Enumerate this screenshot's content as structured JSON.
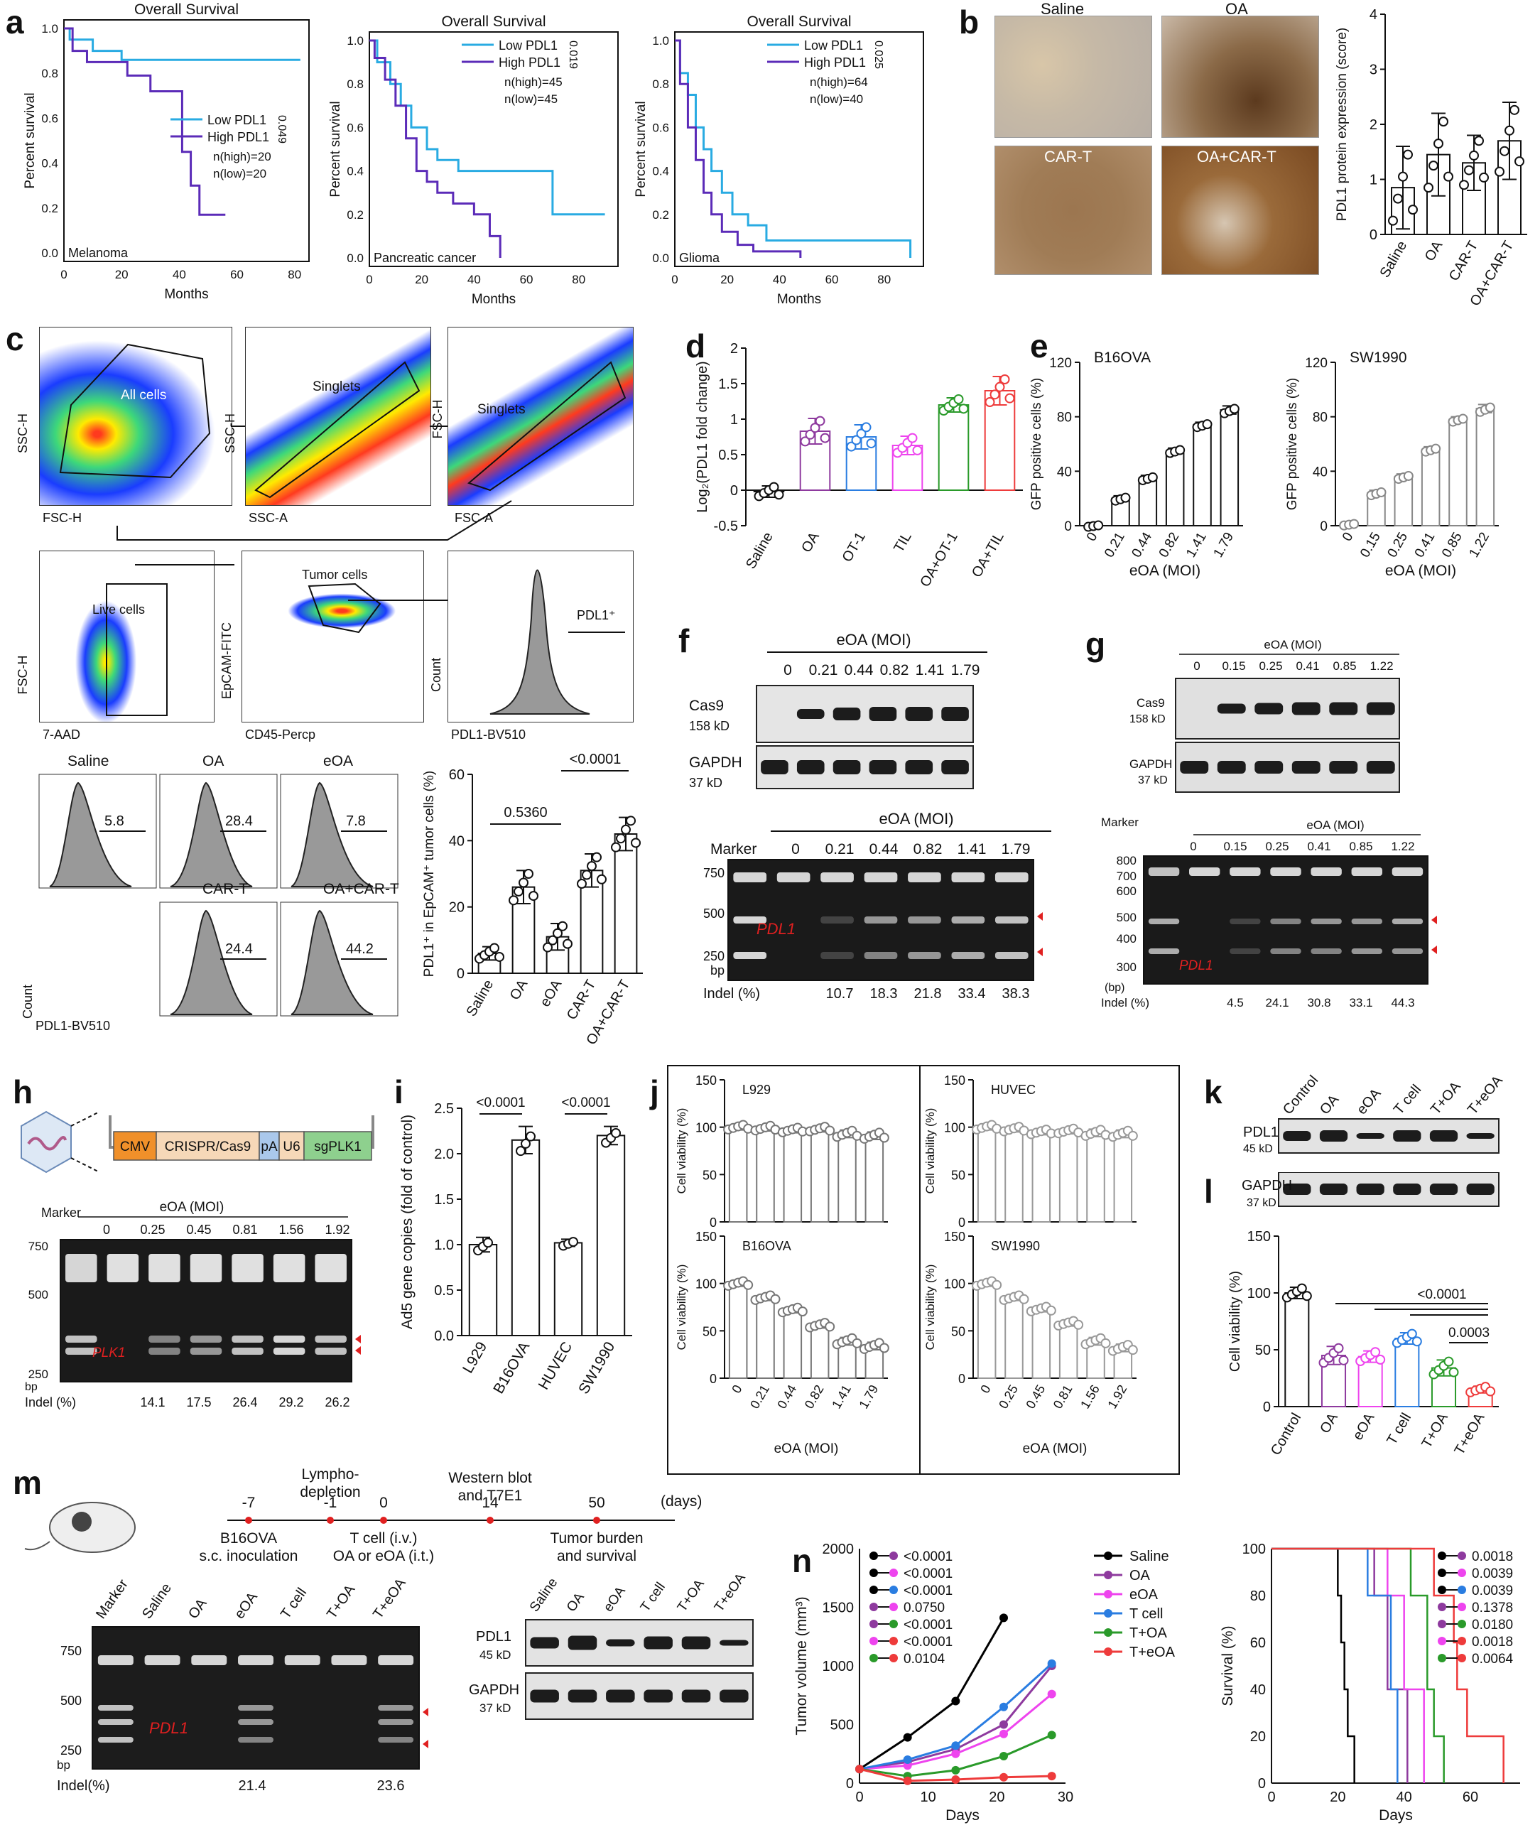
{
  "panels": {
    "a": "a",
    "b": "b",
    "c": "c",
    "d": "d",
    "e": "e",
    "f": "f",
    "g": "g",
    "h": "h",
    "i": "i",
    "j": "j",
    "k": "k",
    "l": "l",
    "m": "m",
    "n": "n"
  },
  "km_title": "Overall Survival",
  "km_ylabel": "Percent survival",
  "km_xlabel": "Months",
  "km_low": "Low PDL1",
  "km_high": "High PDL1",
  "km_plots": [
    {
      "cancer": "Melanoma",
      "p": "0.049",
      "n_high": "n(high)=20",
      "n_low": "n(low)=20"
    },
    {
      "cancer": "Pancreatic cancer",
      "p": "0.019",
      "n_high": "n(high)=45",
      "n_low": "n(low)=45"
    },
    {
      "cancer": "Glioma",
      "p": "0.025",
      "n_high": "n(high)=64",
      "n_low": "n(low)=40"
    }
  ],
  "b": {
    "images": [
      "Saline",
      "OA",
      "CAR-T",
      "OA+CAR-T"
    ],
    "ylabel": "PDL1 protein expression (score)"
  },
  "c": {
    "gates": [
      "All cells",
      "Singlets",
      "Singlets",
      "Live cells",
      "Tumor cells",
      "PDL1⁺"
    ],
    "axes": [
      "SSC-H",
      "FSC-H",
      "SSC-H",
      "SSC-A",
      "FSC-H",
      "FSC-A",
      "FSC-H",
      "7-AAD",
      "EpCAM-FITC",
      "CD45-Percp",
      "Count",
      "PDL1-BV510"
    ],
    "hist": [
      {
        "label": "Saline",
        "val": "5.8"
      },
      {
        "label": "OA",
        "val": "28.4"
      },
      {
        "label": "eOA",
        "val": "7.8"
      },
      {
        "label": "CAR-T",
        "val": "24.4"
      },
      {
        "label": "OA+CAR-T",
        "val": "44.2"
      }
    ],
    "count_label": "Count",
    "pdl1_label": "PDL1-BV510",
    "bar_ylabel": "PDL1⁺ in EpCAM⁺ tumor cells (%)",
    "p1": "0.5360",
    "p2": "<0.0001"
  },
  "d": {
    "ylabel": "Log₂(PDL1 fold change)"
  },
  "e": {
    "left_title": "B16OVA",
    "right_title": "SW1990",
    "ylabel": "GFP positive cells (%)",
    "xlabel": "eOA (MOI)"
  },
  "f": {
    "header": "eOA (MOI)",
    "mois": [
      "0",
      "0.21",
      "0.44",
      "0.82",
      "1.41",
      "1.79"
    ],
    "cas9": "Cas9",
    "cas9_kd": "158 kD",
    "gapdh": "GAPDH",
    "gapdh_kd": "37 kD",
    "marker": "Marker",
    "gene": "PDL1",
    "bp": "bp",
    "indel_label": "Indel (%)",
    "indels": [
      "10.7",
      "18.3",
      "21.8",
      "33.4",
      "38.3"
    ],
    "ladder": [
      "750",
      "500",
      "250"
    ]
  },
  "g": {
    "header": "eOA (MOI)",
    "mois": [
      "0",
      "0.15",
      "0.25",
      "0.41",
      "0.85",
      "1.22"
    ],
    "cas9": "Cas9",
    "cas9_kd": "158 kD",
    "gapdh": "GAPDH",
    "gapdh_kd": "37 kD",
    "marker": "Marker",
    "gene": "PDL1",
    "bp": "(bp)",
    "indel_label": "Indel (%)",
    "indels": [
      "4.5",
      "24.1",
      "30.8",
      "33.1",
      "44.3"
    ],
    "ladder": [
      "800",
      "700",
      "600",
      "500",
      "400",
      "300"
    ]
  },
  "h": {
    "construct": [
      "CMV",
      "CRISPR/Cas9",
      "pA",
      "U6",
      "sgPLK1"
    ],
    "header": "eOA (MOI)",
    "marker": "Marker",
    "mois": [
      "0",
      "0.25",
      "0.45",
      "0.81",
      "1.56",
      "1.92"
    ],
    "gene": "PLK1",
    "bp": "bp",
    "indel_label": "Indel (%)",
    "indels": [
      "14.1",
      "17.5",
      "26.4",
      "29.2",
      "26.2"
    ],
    "ladder": [
      "750",
      "500",
      "250"
    ]
  },
  "i": {
    "ylabel": "Ad5 gene copies (fold of control)",
    "p": "<0.0001"
  },
  "j": {
    "ylabel": "Cell viability (%)",
    "xlabel": "eOA (MOI)",
    "cells": [
      "L929",
      "HUVEC",
      "B16OVA",
      "SW1990"
    ]
  },
  "k": {
    "lanes": [
      "Control",
      "OA",
      "eOA",
      "T cell",
      "T+OA",
      "T+eOA"
    ],
    "pdl1": "PDL1",
    "pdl1_kd": "45 kD",
    "gapdh": "GAPDH",
    "gapdh_kd": "37 kD"
  },
  "l": {
    "ylabel": "Cell viability (%)",
    "p1": "<0.0001",
    "p2": "0.0003"
  },
  "m": {
    "days": [
      "-7",
      "-1",
      "0",
      "14",
      "50"
    ],
    "unit": "(days)",
    "above": [
      "Lympho-\ndepletion",
      "Western blot\nand T7E1"
    ],
    "below": [
      "B16OVA\ns.c. inoculation",
      "T cell (i.v.)\nOA or eOA (i.t.)",
      "Tumor burden\nand survival"
    ],
    "gel_lanes": [
      "Marker",
      "Saline",
      "OA",
      "eOA",
      "T cell",
      "T+OA",
      "T+eOA"
    ],
    "gene": "PDL1",
    "bp": "bp",
    "indel_label": "Indel(%)",
    "indels": [
      "21.4",
      "23.6"
    ],
    "ladder": [
      "750",
      "500",
      "250"
    ],
    "wb_lanes": [
      "Saline",
      "OA",
      "eOA",
      "T cell",
      "T+OA",
      "T+eOA"
    ],
    "pdl1": "PDL1",
    "pdl1_kd": "45 kD",
    "gapdh": "GAPDH",
    "gapdh_kd": "37 kD"
  },
  "n": {
    "ylabel": "Tumor volume (mm³)",
    "xlabel": "Days",
    "surv_ylabel": "Survival (%)",
    "surv_xlabel": "Days",
    "legend": [
      "Saline",
      "OA",
      "eOA",
      "T cell",
      "T+OA",
      "T+eOA"
    ],
    "pvals1": [
      "<0.0001",
      "<0.0001",
      "<0.0001",
      "0.0750",
      "<0.0001",
      "<0.0001",
      "0.0104"
    ],
    "pvals2": [
      "0.0018",
      "0.0039",
      "0.0039",
      "0.1378",
      "0.0180",
      "0.0018",
      "0.0064"
    ]
  },
  "colors": {
    "low": "#29abe2",
    "high": "#5b2bb8",
    "saline": "#000000",
    "oa": "#8e3a9e",
    "eoa": "#ee44ee",
    "tcell": "#2a7de1",
    "toa": "#2a9a2a",
    "teoa": "#ee3b3b"
  },
  "chart_data": [
    {
      "type": "bar",
      "title": "b",
      "categories": [
        "Saline",
        "OA",
        "CAR-T",
        "OA+CAR-T"
      ],
      "values": [
        0.85,
        1.45,
        1.3,
        1.7
      ],
      "ylim": [
        0,
        4
      ],
      "ylabel": "PDL1 protein expression (score)"
    },
    {
      "type": "bar",
      "title": "c",
      "categories": [
        "Saline",
        "OA",
        "eOA",
        "CAR-T",
        "OA+CAR-T"
      ],
      "values": [
        6,
        26,
        11,
        31,
        42
      ],
      "ylim": [
        0,
        60
      ],
      "ylabel": "PDL1⁺ in EpCAM⁺ tumor cells (%)"
    },
    {
      "type": "bar",
      "title": "d",
      "categories": [
        "Saline",
        "OA",
        "OT-1",
        "TIL",
        "OA+OT-1",
        "OA+TIL"
      ],
      "values": [
        -0.02,
        0.83,
        0.75,
        0.63,
        1.2,
        1.4
      ],
      "ylim": [
        -0.5,
        2.0
      ],
      "ylabel": "Log₂(PDL1 fold change)"
    },
    {
      "type": "bar",
      "title": "B16OVA",
      "categories": [
        "0",
        "0.21",
        "0.44",
        "0.82",
        "1.41",
        "1.79"
      ],
      "values": [
        0,
        20,
        35,
        55,
        74,
        85
      ],
      "ylim": [
        0,
        120
      ],
      "ylabel": "GFP positive cells (%)"
    },
    {
      "type": "bar",
      "title": "SW1990",
      "categories": [
        "0",
        "0.15",
        "0.25",
        "0.41",
        "0.85",
        "1.22"
      ],
      "values": [
        1,
        24,
        36,
        56,
        78,
        86
      ],
      "ylim": [
        0,
        120
      ],
      "ylabel": "GFP positive cells (%)"
    },
    {
      "type": "bar",
      "title": "i",
      "categories": [
        "L929",
        "B16OVA",
        "HUVEC",
        "SW1990"
      ],
      "values": [
        1.0,
        2.15,
        1.02,
        2.2
      ],
      "ylim": [
        0,
        2.5
      ],
      "ylabel": "Ad5 gene copies (fold of control)"
    },
    {
      "type": "bar",
      "title": "L929",
      "categories": [
        "0",
        "0.21",
        "0.44",
        "0.82",
        "1.41",
        "1.79"
      ],
      "values": [
        100,
        99,
        97,
        98,
        93,
        91
      ],
      "ylim": [
        0,
        150
      ]
    },
    {
      "type": "bar",
      "title": "HUVEC",
      "categories": [
        "0",
        "0.25",
        "0.45",
        "0.81",
        "1.56",
        "1.92"
      ],
      "values": [
        100,
        98,
        95,
        96,
        94,
        93
      ],
      "ylim": [
        0,
        150
      ]
    },
    {
      "type": "bar",
      "title": "B16OVA",
      "categories": [
        "0",
        "0.21",
        "0.44",
        "0.82",
        "1.41",
        "1.79"
      ],
      "values": [
        100,
        85,
        72,
        56,
        39,
        34
      ],
      "ylim": [
        0,
        150
      ]
    },
    {
      "type": "bar",
      "title": "SW1990",
      "categories": [
        "0",
        "0.25",
        "0.45",
        "0.81",
        "1.56",
        "1.92"
      ],
      "values": [
        100,
        85,
        73,
        58,
        39,
        32
      ],
      "ylim": [
        0,
        150
      ]
    },
    {
      "type": "bar",
      "title": "l",
      "categories": [
        "Control",
        "OA",
        "eOA",
        "T cell",
        "T+OA",
        "T+eOA"
      ],
      "values": [
        100,
        45,
        44,
        60,
        34,
        15
      ],
      "ylim": [
        0,
        150
      ],
      "ylabel": "Cell viability (%)"
    },
    {
      "type": "line",
      "title": "n",
      "x": [
        0,
        7,
        14,
        21,
        28
      ],
      "series": [
        {
          "name": "Saline",
          "values": [
            120,
            390,
            700,
            1410,
            null
          ]
        },
        {
          "name": "OA",
          "values": [
            120,
            180,
            290,
            500,
            1000
          ]
        },
        {
          "name": "eOA",
          "values": [
            120,
            150,
            250,
            420,
            760
          ]
        },
        {
          "name": "T cell",
          "values": [
            120,
            200,
            320,
            650,
            1020
          ]
        },
        {
          "name": "T+OA",
          "values": [
            120,
            60,
            110,
            230,
            410
          ]
        },
        {
          "name": "T+eOA",
          "values": [
            120,
            20,
            30,
            50,
            60
          ]
        }
      ],
      "ylim": [
        0,
        2000
      ],
      "xlabel": "Days",
      "ylabel": "Tumor volume (mm³)"
    },
    {
      "type": "line",
      "title": "n survival",
      "series": [
        {
          "name": "Saline",
          "values": [
            [
              0,
              100
            ],
            [
              20,
              100
            ],
            [
              20,
              80
            ],
            [
              21,
              60
            ],
            [
              22,
              40
            ],
            [
              23,
              20
            ],
            [
              25,
              0
            ]
          ]
        },
        {
          "name": "OA",
          "values": [
            [
              0,
              100
            ],
            [
              31,
              100
            ],
            [
              31,
              80
            ],
            [
              35,
              40
            ],
            [
              40,
              40
            ],
            [
              41,
              0
            ]
          ]
        },
        {
          "name": "eOA",
          "values": [
            [
              0,
              100
            ],
            [
              35,
              100
            ],
            [
              35,
              80
            ],
            [
              40,
              40
            ],
            [
              44,
              40
            ],
            [
              46,
              0
            ]
          ]
        },
        {
          "name": "T cell",
          "values": [
            [
              0,
              100
            ],
            [
              29,
              100
            ],
            [
              29,
              80
            ],
            [
              35,
              80
            ],
            [
              36,
              40
            ],
            [
              38,
              0
            ]
          ]
        },
        {
          "name": "T+OA",
          "values": [
            [
              0,
              100
            ],
            [
              42,
              100
            ],
            [
              42,
              80
            ],
            [
              45,
              80
            ],
            [
              47,
              40
            ],
            [
              49,
              20
            ],
            [
              52,
              0
            ]
          ]
        },
        {
          "name": "T+eOA",
          "values": [
            [
              0,
              100
            ],
            [
              49,
              100
            ],
            [
              49,
              80
            ],
            [
              55,
              60
            ],
            [
              56,
              40
            ],
            [
              59,
              20
            ],
            [
              70,
              0
            ]
          ]
        }
      ],
      "ylim": [
        0,
        100
      ],
      "xlim": [
        0,
        75
      ],
      "xlabel": "Days",
      "ylabel": "Survival (%)"
    }
  ]
}
